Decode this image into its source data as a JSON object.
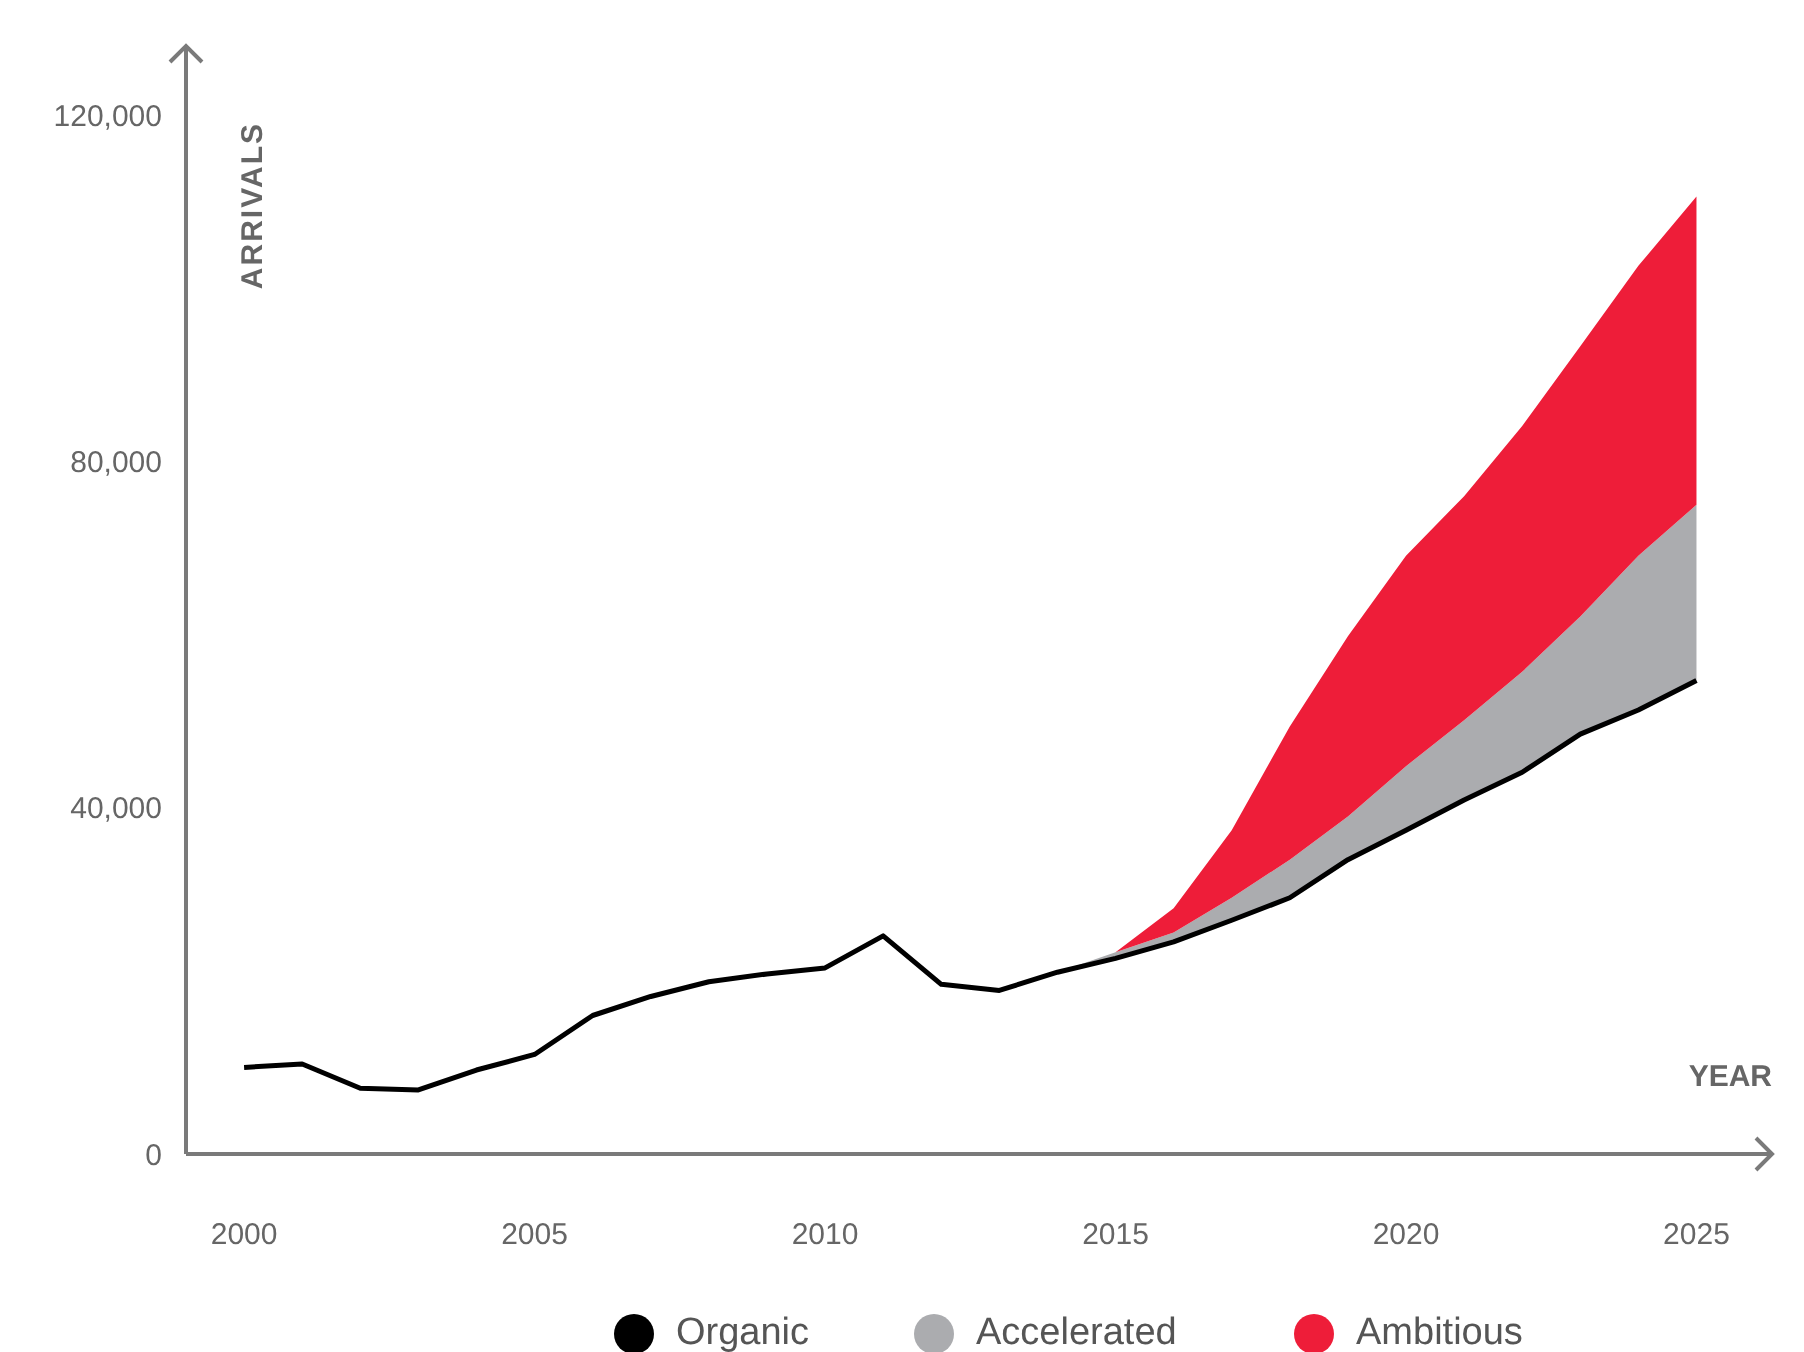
{
  "chart_data": {
    "type": "area",
    "xlabel": "YEAR",
    "ylabel": "ARRIVALS",
    "x": [
      2000,
      2001,
      2002,
      2003,
      2004,
      2005,
      2006,
      2007,
      2008,
      2009,
      2010,
      2011,
      2012,
      2013,
      2014,
      2015,
      2016,
      2017,
      2018,
      2019,
      2020,
      2021,
      2022,
      2023,
      2024,
      2025
    ],
    "series": [
      {
        "name": "Organic",
        "type": "line",
        "color": "#000000",
        "values": [
          10000,
          10400,
          7600,
          7400,
          9700,
          11500,
          16000,
          18200,
          19900,
          20800,
          21500,
          25200,
          19600,
          18900,
          21000,
          22600,
          24500,
          27000,
          29600,
          34000,
          37400,
          40900,
          44100,
          48500,
          51300,
          54700
        ]
      },
      {
        "name": "Accelerated",
        "color": "#abacaf",
        "values": [
          null,
          null,
          null,
          null,
          null,
          null,
          null,
          null,
          null,
          null,
          null,
          null,
          null,
          null,
          21000,
          23300,
          25600,
          29600,
          34000,
          39000,
          44800,
          50100,
          55700,
          62100,
          69100,
          75000
        ]
      },
      {
        "name": "Ambitious",
        "color": "#ee1d39",
        "values": [
          null,
          null,
          null,
          null,
          null,
          null,
          null,
          null,
          null,
          null,
          null,
          null,
          null,
          null,
          null,
          23300,
          28400,
          37400,
          49400,
          59800,
          69100,
          76000,
          84100,
          93300,
          102600,
          110600
        ]
      }
    ],
    "xlim": [
      1999,
      2026.3
    ],
    "xticks": [
      2000,
      2005,
      2010,
      2015,
      2020,
      2025
    ],
    "ylim": [
      0,
      128000
    ],
    "yticks": [
      {
        "value": 0,
        "label": "0"
      },
      {
        "value": 40000,
        "label": "40,000"
      },
      {
        "value": 80000,
        "label": "80,000"
      },
      {
        "value": 120000,
        "label": "120,000"
      }
    ],
    "grid": false,
    "legend": "bottom",
    "line_style": "solid",
    "marker": "none"
  }
}
